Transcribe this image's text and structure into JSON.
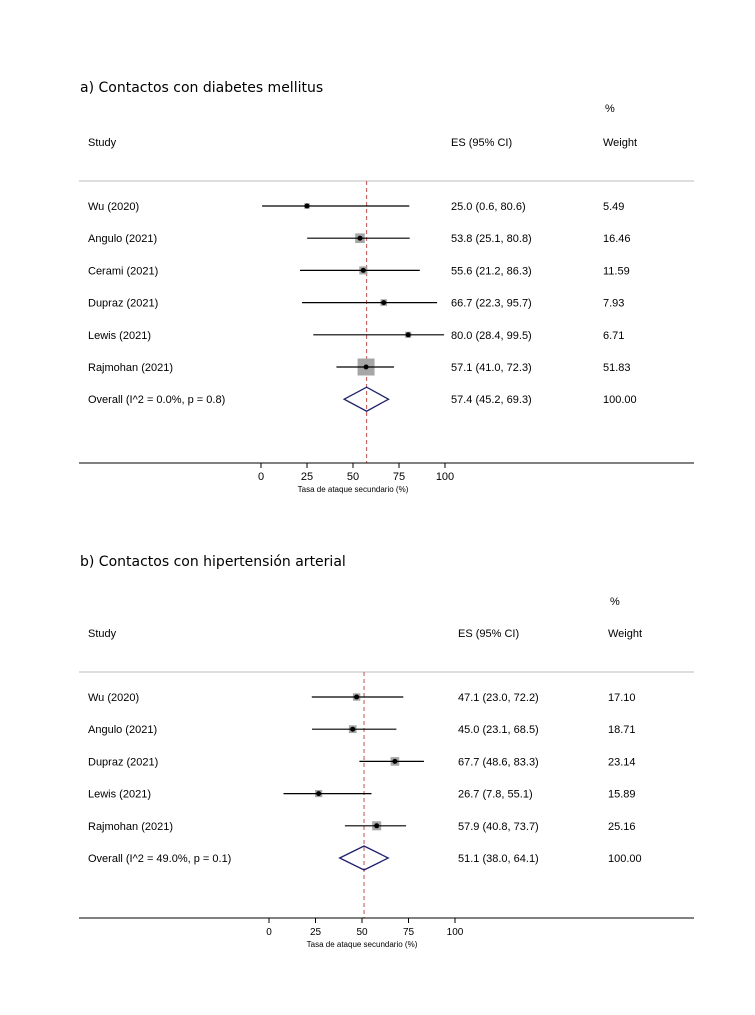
{
  "chart_data": [
    {
      "type": "forest",
      "title": "a) Contactos con diabetes mellitus",
      "headers": {
        "study": "Study",
        "es": "ES (95% CI)",
        "weight_pct": "%",
        "weight": "Weight"
      },
      "rows": [
        {
          "label": "Wu (2020)",
          "es": 25.0,
          "lo": 0.6,
          "hi": 80.6,
          "es_text": "25.0 (0.6, 80.6)",
          "weight": 5.49,
          "weight_text": "5.49"
        },
        {
          "label": "Angulo (2021)",
          "es": 53.8,
          "lo": 25.1,
          "hi": 80.8,
          "es_text": "53.8 (25.1, 80.8)",
          "weight": 16.46,
          "weight_text": "16.46"
        },
        {
          "label": "Cerami (2021)",
          "es": 55.6,
          "lo": 21.2,
          "hi": 86.3,
          "es_text": "55.6 (21.2, 86.3)",
          "weight": 11.59,
          "weight_text": "11.59"
        },
        {
          "label": "Dupraz (2021)",
          "es": 66.7,
          "lo": 22.3,
          "hi": 95.7,
          "es_text": "66.7 (22.3, 95.7)",
          "weight": 7.93,
          "weight_text": "7.93"
        },
        {
          "label": "Lewis (2021)",
          "es": 80.0,
          "lo": 28.4,
          "hi": 99.5,
          "es_text": "80.0 (28.4, 99.5)",
          "weight": 6.71,
          "weight_text": "6.71"
        },
        {
          "label": "Rajmohan (2021)",
          "es": 57.1,
          "lo": 41.0,
          "hi": 72.3,
          "es_text": "57.1 (41.0, 72.3)",
          "weight": 51.83,
          "weight_text": "51.83"
        }
      ],
      "overall": {
        "label": "Overall  (I^2 = 0.0%, p = 0.8)",
        "es": 57.4,
        "lo": 45.2,
        "hi": 69.3,
        "es_text": "57.4 (45.2, 69.3)",
        "weight_text": "100.00"
      },
      "xticks": [
        0,
        25,
        50,
        75,
        100
      ],
      "xlim": [
        0,
        100
      ],
      "xlabel": "Tasa de ataque secundario (%)"
    },
    {
      "type": "forest",
      "title": "b) Contactos con hipertensión arterial",
      "headers": {
        "study": "Study",
        "es": "ES (95% CI)",
        "weight_pct": "%",
        "weight": "Weight"
      },
      "rows": [
        {
          "label": "Wu (2020)",
          "es": 47.1,
          "lo": 23.0,
          "hi": 72.2,
          "es_text": "47.1 (23.0, 72.2)",
          "weight": 17.1,
          "weight_text": "17.10"
        },
        {
          "label": "Angulo (2021)",
          "es": 45.0,
          "lo": 23.1,
          "hi": 68.5,
          "es_text": "45.0 (23.1, 68.5)",
          "weight": 18.71,
          "weight_text": "18.71"
        },
        {
          "label": "Dupraz (2021)",
          "es": 67.7,
          "lo": 48.6,
          "hi": 83.3,
          "es_text": "67.7 (48.6, 83.3)",
          "weight": 23.14,
          "weight_text": "23.14"
        },
        {
          "label": "Lewis (2021)",
          "es": 26.7,
          "lo": 7.8,
          "hi": 55.1,
          "es_text": "26.7 (7.8, 55.1)",
          "weight": 15.89,
          "weight_text": "15.89"
        },
        {
          "label": "Rajmohan (2021)",
          "es": 57.9,
          "lo": 40.8,
          "hi": 73.7,
          "es_text": "57.9 (40.8, 73.7)",
          "weight": 25.16,
          "weight_text": "25.16"
        }
      ],
      "overall": {
        "label": "Overall  (I^2 = 49.0%, p = 0.1)",
        "es": 51.1,
        "lo": 38.0,
        "hi": 64.1,
        "es_text": "51.1 (38.0, 64.1)",
        "weight_text": "100.00"
      },
      "xticks": [
        0,
        25,
        50,
        75,
        100
      ],
      "xlim": [
        0,
        100
      ],
      "xlabel": "Tasa de ataque secundario (%)"
    }
  ]
}
